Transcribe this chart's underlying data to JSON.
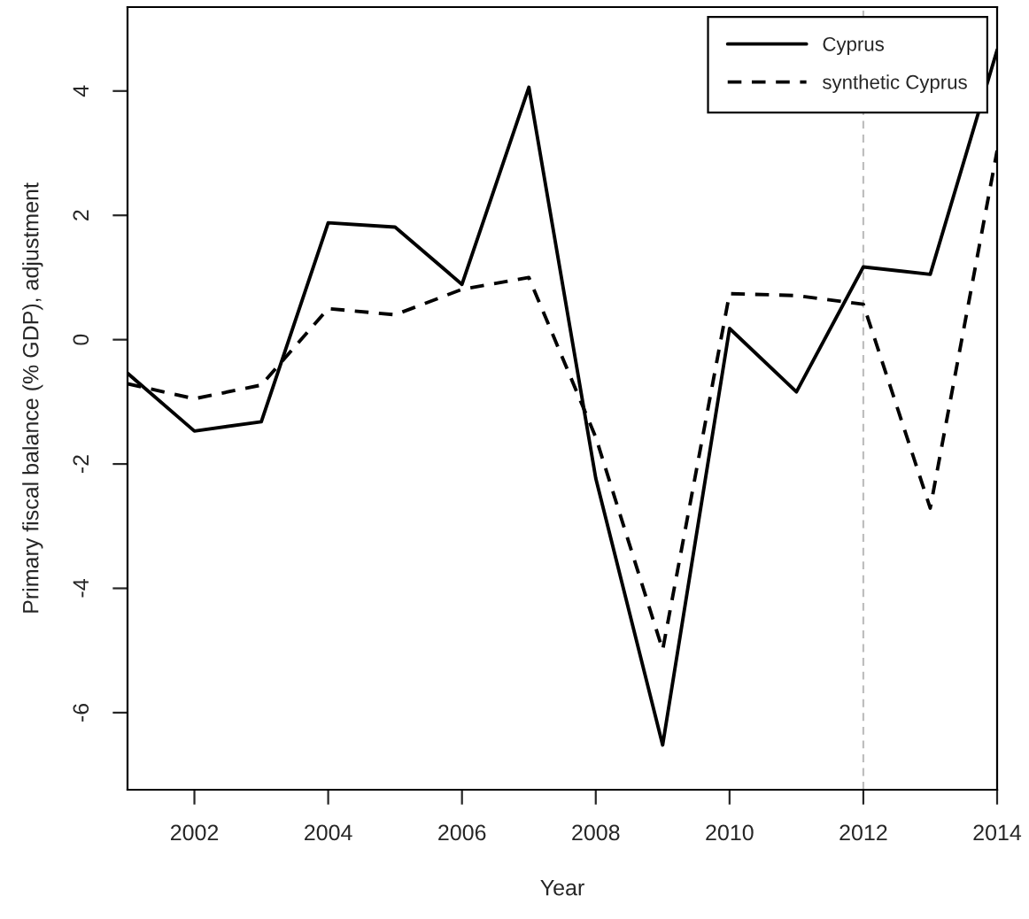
{
  "chart_data": {
    "type": "line",
    "xlabel": "Year",
    "ylabel": "Primary fiscal balance (% GDP), adjustment",
    "x": [
      2001,
      2002,
      2003,
      2004,
      2005,
      2006,
      2007,
      2008,
      2009,
      2010,
      2011,
      2012,
      2013,
      2014
    ],
    "series": [
      {
        "name": "Cyprus",
        "color": "#000000",
        "line_style": "solid",
        "values": [
          -0.54,
          -1.47,
          -1.32,
          1.88,
          1.81,
          0.89,
          4.06,
          -2.23,
          -6.52,
          0.18,
          -0.84,
          1.17,
          1.05,
          4.66
        ]
      },
      {
        "name": "synthetic Cyprus",
        "color": "#000000",
        "line_style": "dashed",
        "values": [
          -0.71,
          -0.95,
          -0.73,
          0.5,
          0.4,
          0.81,
          1.0,
          -1.57,
          -4.99,
          0.74,
          0.71,
          0.57,
          -2.71,
          3.04
        ]
      }
    ],
    "xlim": [
      2001,
      2014
    ],
    "xticks": [
      2002,
      2004,
      2006,
      2008,
      2010,
      2012,
      2014
    ],
    "ylim": [
      -7.24,
      5.35
    ],
    "yticks": [
      -6,
      -4,
      -2,
      0,
      2,
      4
    ],
    "ref_lines": [
      {
        "axis": "x",
        "value": 2012,
        "color": "#bebebe",
        "line_style": "dashed"
      }
    ],
    "grid": false,
    "legend": "top right",
    "marker": "none"
  }
}
